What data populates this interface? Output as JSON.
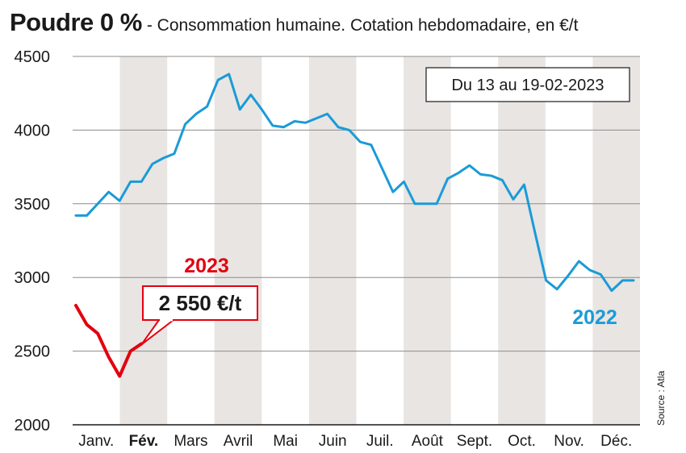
{
  "header": {
    "title": "Poudre 0 %",
    "subtitle": "- Consommation humaine. Cotation hebdomadaire, en €/t"
  },
  "period_label": "Du 13 au 19-02-2023",
  "source": "Source : Atla",
  "colors": {
    "series_2022": "#1a9bd7",
    "series_2023": "#e3000f",
    "band": "#e8e5e3",
    "grid": "#8c8c8c",
    "text": "#1a1a1a"
  },
  "chart_data": {
    "type": "line",
    "ylim": [
      2000,
      4500
    ],
    "yticks": [
      "2000",
      "2500",
      "3000",
      "3500",
      "4000",
      "4500"
    ],
    "months": [
      "Janv.",
      "Fév.",
      "Mars",
      "Avril",
      "Mai",
      "Juin",
      "Juil.",
      "Août",
      "Sept.",
      "Oct.",
      "Nov.",
      "Déc."
    ],
    "highlighted_month": "Fév.",
    "shaded_months": [
      "Fév.",
      "Avril",
      "Juin",
      "Août",
      "Oct.",
      "Déc."
    ],
    "grid": "horizontal",
    "x_unit": "semaine",
    "series": [
      {
        "name": "2022",
        "x": [
          1,
          2,
          3,
          4,
          5,
          6,
          7,
          8,
          9,
          10,
          11,
          12,
          13,
          14,
          15,
          16,
          17,
          18,
          19,
          20,
          21,
          22,
          23,
          24,
          25,
          26,
          27,
          28,
          29,
          30,
          31,
          32,
          33,
          34,
          35,
          36,
          37,
          38,
          39,
          40,
          41,
          42,
          43,
          44,
          45,
          46,
          47,
          48,
          49,
          50,
          51,
          52
        ],
        "values": [
          3420,
          3420,
          3500,
          3580,
          3520,
          3650,
          3650,
          3770,
          3810,
          3840,
          4040,
          4110,
          4160,
          4340,
          4380,
          4140,
          4240,
          4140,
          4030,
          4020,
          4060,
          4050,
          4080,
          4110,
          4020,
          4000,
          3920,
          3900,
          3740,
          3580,
          3650,
          3500,
          3500,
          3500,
          3670,
          3710,
          3760,
          3700,
          3690,
          3660,
          3530,
          3630,
          3300,
          2980,
          2920,
          3010,
          3110,
          3050,
          3020,
          2910,
          2980,
          2980
        ]
      },
      {
        "name": "2023",
        "x": [
          1,
          2,
          3,
          4,
          5,
          6,
          7
        ],
        "values": [
          2810,
          2680,
          2620,
          2460,
          2330,
          2500,
          2550
        ]
      }
    ],
    "annotation": {
      "text": "2 550 €/t",
      "series": "2023",
      "x": 7,
      "value": 2550
    }
  }
}
